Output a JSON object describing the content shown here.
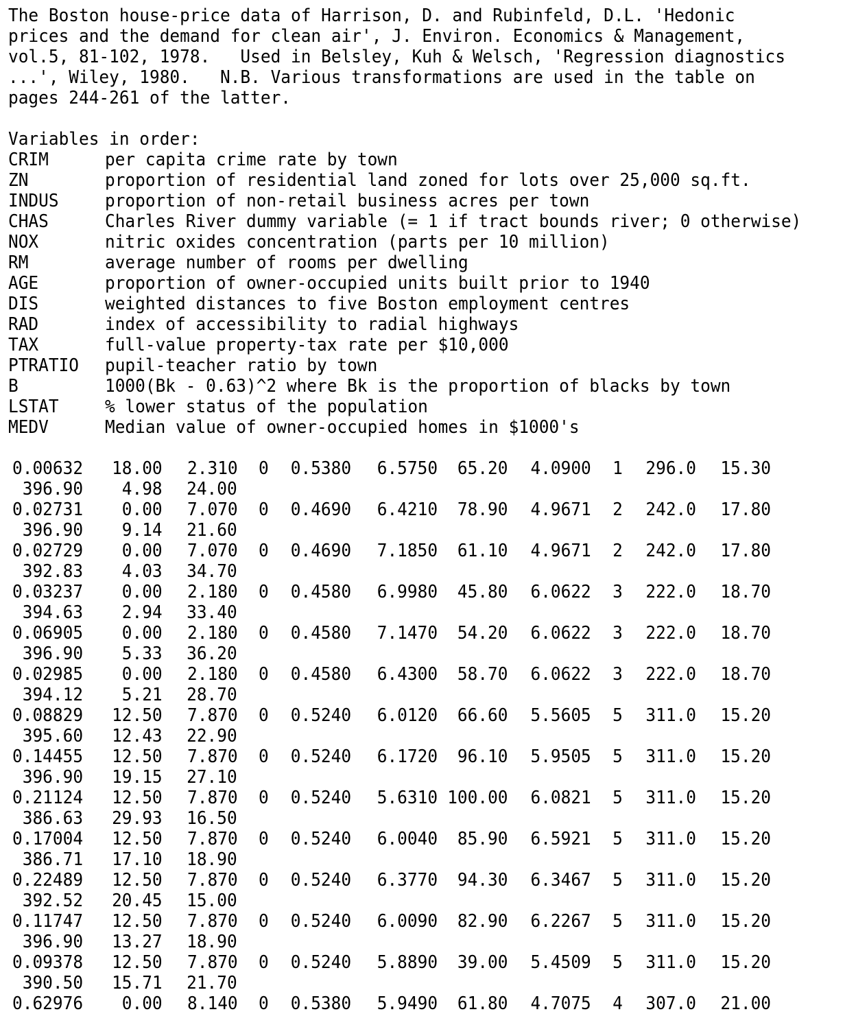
{
  "header": [
    "The Boston house-price data of Harrison, D. and Rubinfeld, D.L. 'Hedonic",
    "prices and the demand for clean air', J. Environ. Economics & Management,",
    "vol.5, 81-102, 1978.   Used in Belsley, Kuh & Welsch, 'Regression diagnostics",
    "...', Wiley, 1980.   N.B. Various transformations are used in the table on",
    "pages 244-261 of the latter."
  ],
  "variables_heading": "Variables in order:",
  "variables": [
    {
      "name": "CRIM",
      "desc": "per capita crime rate by town"
    },
    {
      "name": "ZN",
      "desc": "proportion of residential land zoned for lots over 25,000 sq.ft."
    },
    {
      "name": "INDUS",
      "desc": "proportion of non-retail business acres per town"
    },
    {
      "name": "CHAS",
      "desc": "Charles River dummy variable (= 1 if tract bounds river; 0 otherwise)"
    },
    {
      "name": "NOX",
      "desc": "nitric oxides concentration (parts per 10 million)"
    },
    {
      "name": "RM",
      "desc": "average number of rooms per dwelling"
    },
    {
      "name": "AGE",
      "desc": "proportion of owner-occupied units built prior to 1940"
    },
    {
      "name": "DIS",
      "desc": "weighted distances to five Boston employment centres"
    },
    {
      "name": "RAD",
      "desc": "index of accessibility to radial highways"
    },
    {
      "name": "TAX",
      "desc": "full-value property-tax rate per $10,000"
    },
    {
      "name": "PTRATIO",
      "desc": "pupil-teacher ratio by town"
    },
    {
      "name": "B",
      "desc": "1000(Bk - 0.63)^2 where Bk is the proportion of blacks by town"
    },
    {
      "name": "LSTAT",
      "desc": "% lower status of the population"
    },
    {
      "name": "MEDV",
      "desc": "Median value of owner-occupied homes in $1000's"
    }
  ],
  "records": [
    [
      "0.00632",
      "18.00",
      "2.310",
      "0",
      "0.5380",
      "6.5750",
      "65.20",
      "4.0900",
      "1",
      "296.0",
      "15.30",
      "396.90",
      "4.98",
      "24.00"
    ],
    [
      "0.02731",
      "0.00",
      "7.070",
      "0",
      "0.4690",
      "6.4210",
      "78.90",
      "4.9671",
      "2",
      "242.0",
      "17.80",
      "396.90",
      "9.14",
      "21.60"
    ],
    [
      "0.02729",
      "0.00",
      "7.070",
      "0",
      "0.4690",
      "7.1850",
      "61.10",
      "4.9671",
      "2",
      "242.0",
      "17.80",
      "392.83",
      "4.03",
      "34.70"
    ],
    [
      "0.03237",
      "0.00",
      "2.180",
      "0",
      "0.4580",
      "6.9980",
      "45.80",
      "6.0622",
      "3",
      "222.0",
      "18.70",
      "394.63",
      "2.94",
      "33.40"
    ],
    [
      "0.06905",
      "0.00",
      "2.180",
      "0",
      "0.4580",
      "7.1470",
      "54.20",
      "6.0622",
      "3",
      "222.0",
      "18.70",
      "396.90",
      "5.33",
      "36.20"
    ],
    [
      "0.02985",
      "0.00",
      "2.180",
      "0",
      "0.4580",
      "6.4300",
      "58.70",
      "6.0622",
      "3",
      "222.0",
      "18.70",
      "394.12",
      "5.21",
      "28.70"
    ],
    [
      "0.08829",
      "12.50",
      "7.870",
      "0",
      "0.5240",
      "6.0120",
      "66.60",
      "5.5605",
      "5",
      "311.0",
      "15.20",
      "395.60",
      "12.43",
      "22.90"
    ],
    [
      "0.14455",
      "12.50",
      "7.870",
      "0",
      "0.5240",
      "6.1720",
      "96.10",
      "5.9505",
      "5",
      "311.0",
      "15.20",
      "396.90",
      "19.15",
      "27.10"
    ],
    [
      "0.21124",
      "12.50",
      "7.870",
      "0",
      "0.5240",
      "5.6310",
      "100.00",
      "6.0821",
      "5",
      "311.0",
      "15.20",
      "386.63",
      "29.93",
      "16.50"
    ],
    [
      "0.17004",
      "12.50",
      "7.870",
      "0",
      "0.5240",
      "6.0040",
      "85.90",
      "6.5921",
      "5",
      "311.0",
      "15.20",
      "386.71",
      "17.10",
      "18.90"
    ],
    [
      "0.22489",
      "12.50",
      "7.870",
      "0",
      "0.5240",
      "6.3770",
      "94.30",
      "6.3467",
      "5",
      "311.0",
      "15.20",
      "392.52",
      "20.45",
      "15.00"
    ],
    [
      "0.11747",
      "12.50",
      "7.870",
      "0",
      "0.5240",
      "6.0090",
      "82.90",
      "6.2267",
      "5",
      "311.0",
      "15.20",
      "396.90",
      "13.27",
      "18.90"
    ],
    [
      "0.09378",
      "12.50",
      "7.870",
      "0",
      "0.5240",
      "5.8890",
      "39.00",
      "5.4509",
      "5",
      "311.0",
      "15.20",
      "390.50",
      "15.71",
      "21.70"
    ],
    [
      "0.62976",
      "0.00",
      "8.140",
      "0",
      "0.5380",
      "5.9490",
      "61.80",
      "4.7075",
      "4",
      "307.0",
      "21.00"
    ]
  ]
}
